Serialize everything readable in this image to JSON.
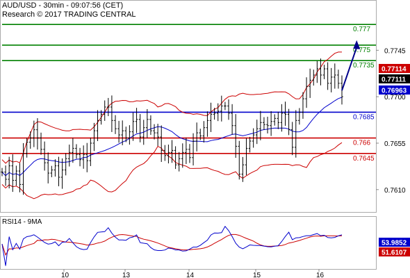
{
  "header": {
    "line1": "AUD/USD - 30min - 09:07:56 (CET)",
    "line2": "Research © 2017 TRADING CENTRAL"
  },
  "colors": {
    "price": "#000000",
    "bollinger": "#cc0000",
    "ma": "#0000cc",
    "resistance": "#008000",
    "pivot": "#0000cc",
    "support": "#cc0000",
    "arrow": "#00008b",
    "rsi": "#0000cc",
    "rsi_ma": "#cc0000"
  },
  "chart_data": [
    {
      "type": "line",
      "title": "AUD/USD - 30min - 09:07:56 (CET)",
      "y_axis_ticks": [
        "0.7745",
        "0.7700",
        "0.7655",
        "0.7610"
      ],
      "ylim": [
        0.7589,
        0.7791
      ],
      "x_axis_ticks": [
        "10",
        "13",
        "14",
        "15",
        "16"
      ],
      "horizontal_levels": [
        {
          "label": "0.777",
          "value": 0.777,
          "role": "resistance",
          "color": "#008000"
        },
        {
          "label": "0.775",
          "value": 0.775,
          "role": "resistance",
          "color": "#008000"
        },
        {
          "label": "0.7735",
          "value": 0.7735,
          "role": "resistance",
          "color": "#008000"
        },
        {
          "label": "0.7685",
          "value": 0.7685,
          "role": "pivot",
          "color": "#0000cc"
        },
        {
          "label": "0.766",
          "value": 0.766,
          "role": "support",
          "color": "#cc0000"
        },
        {
          "label": "0.7645",
          "value": 0.7645,
          "role": "support",
          "color": "#cc0000"
        }
      ],
      "price_badges": [
        {
          "label": "0.77114",
          "value": 0.77114,
          "bg": "#cc0000",
          "fg": "#ffffff"
        },
        {
          "label": "0.77111",
          "value": 0.77111,
          "bg": "#000000",
          "fg": "#ffffff"
        },
        {
          "label": "0.76963",
          "value": 0.76963,
          "bg": "#0000cc",
          "fg": "#ffffff"
        }
      ],
      "projection_arrow": {
        "from": {
          "i": 96,
          "value": 0.7706
        },
        "to": {
          "i": 99,
          "value": 0.7752
        }
      },
      "price_closes": [
        0.7627,
        0.762,
        0.7633,
        0.7619,
        0.7628,
        0.7615,
        0.7645,
        0.7656,
        0.766,
        0.7668,
        0.766,
        0.7649,
        0.7636,
        0.7626,
        0.7629,
        0.7633,
        0.7622,
        0.7629,
        0.764,
        0.7646,
        0.765,
        0.7644,
        0.7639,
        0.7644,
        0.7638,
        0.7655,
        0.7667,
        0.7677,
        0.7683,
        0.769,
        0.769,
        0.7677,
        0.7669,
        0.7663,
        0.7667,
        0.766,
        0.7666,
        0.7676,
        0.7678,
        0.7661,
        0.767,
        0.7678,
        0.7667,
        0.7665,
        0.7661,
        0.7648,
        0.7643,
        0.7646,
        0.7648,
        0.7634,
        0.764,
        0.7646,
        0.7649,
        0.7641,
        0.7657,
        0.7665,
        0.7662,
        0.767,
        0.7677,
        0.7683,
        0.7684,
        0.7686,
        0.7691,
        0.7691,
        0.7684,
        0.7672,
        0.7652,
        0.7625,
        0.7634,
        0.765,
        0.7657,
        0.7663,
        0.7669,
        0.7675,
        0.7673,
        0.7672,
        0.7676,
        0.7679,
        0.7675,
        0.7684,
        0.7683,
        0.7668,
        0.7651,
        0.7677,
        0.7685,
        0.7698,
        0.771,
        0.7716,
        0.7721,
        0.7727,
        0.7721,
        0.7727,
        0.7713,
        0.7719,
        0.7721,
        0.7713,
        0.77
      ],
      "rsi": {
        "label": "RSI14 - 9MA",
        "value_badges": [
          {
            "label": "53.9852",
            "bg": "#0000cc",
            "fg": "#ffffff"
          },
          {
            "label": "51.6107",
            "bg": "#cc0000",
            "fg": "#ffffff"
          }
        ],
        "ylim": [
          0,
          100
        ]
      }
    }
  ]
}
